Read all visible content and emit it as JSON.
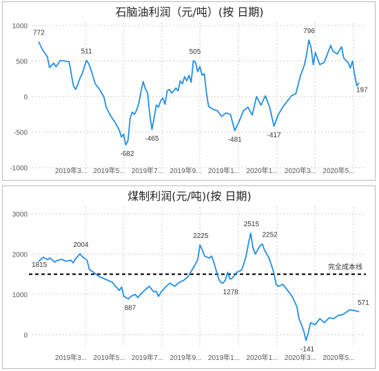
{
  "chart_data": [
    {
      "type": "line",
      "title": "石脑油利润（元/吨）(按 日期)",
      "ylim": [
        -1000,
        1000
      ],
      "yticks": [
        1000,
        500,
        0,
        -500,
        -1000
      ],
      "xticks": [
        "2019年3...",
        "2019年5...",
        "2019年7...",
        "2019年9...",
        "2019年1...",
        "2020年1...",
        "2020年3...",
        "2020年5..."
      ],
      "grid": true,
      "series": [
        {
          "points": [
            [
              0.0,
              772
            ],
            [
              0.02,
              650
            ],
            [
              0.04,
              560
            ],
            [
              0.05,
              410
            ],
            [
              0.07,
              470
            ],
            [
              0.08,
              420
            ],
            [
              0.1,
              510
            ],
            [
              0.12,
              500
            ],
            [
              0.14,
              490
            ],
            [
              0.16,
              150
            ],
            [
              0.17,
              100
            ],
            [
              0.18,
              170
            ],
            [
              0.19,
              260
            ],
            [
              0.2,
              320
            ],
            [
              0.21,
              420
            ],
            [
              0.22,
              511
            ],
            [
              0.23,
              460
            ],
            [
              0.24,
              380
            ],
            [
              0.26,
              180
            ],
            [
              0.28,
              100
            ],
            [
              0.3,
              -10
            ],
            [
              0.31,
              -150
            ],
            [
              0.33,
              -270
            ],
            [
              0.35,
              -360
            ],
            [
              0.37,
              -470
            ],
            [
              0.38,
              -570
            ],
            [
              0.39,
              -530
            ],
            [
              0.4,
              -682
            ],
            [
              0.41,
              -620
            ],
            [
              0.42,
              -300
            ],
            [
              0.43,
              -220
            ],
            [
              0.44,
              -250
            ],
            [
              0.45,
              -190
            ],
            [
              0.46,
              -90
            ],
            [
              0.47,
              80
            ],
            [
              0.48,
              210
            ],
            [
              0.49,
              110
            ],
            [
              0.5,
              50
            ],
            [
              0.51,
              -250
            ],
            [
              0.52,
              -465
            ],
            [
              0.53,
              -300
            ],
            [
              0.54,
              -120
            ],
            [
              0.55,
              -150
            ],
            [
              0.56,
              -60
            ],
            [
              0.57,
              -20
            ],
            [
              0.58,
              -110
            ],
            [
              0.59,
              80
            ],
            [
              0.6,
              100
            ],
            [
              0.61,
              50
            ],
            [
              0.62,
              80
            ],
            [
              0.63,
              120
            ],
            [
              0.64,
              80
            ],
            [
              0.65,
              220
            ],
            [
              0.66,
              180
            ],
            [
              0.67,
              280
            ],
            [
              0.68,
              220
            ],
            [
              0.69,
              300
            ],
            [
              0.7,
              200
            ],
            [
              0.71,
              505
            ],
            [
              0.72,
              480
            ],
            [
              0.73,
              350
            ],
            [
              0.74,
              420
            ],
            [
              0.75,
              300
            ],
            [
              0.76,
              320
            ],
            [
              0.77,
              50
            ],
            [
              0.78,
              -140
            ],
            [
              0.8,
              -180
            ],
            [
              0.82,
              -200
            ],
            [
              0.84,
              -280
            ],
            [
              0.86,
              -230
            ],
            [
              0.88,
              -250
            ],
            [
              0.9,
              -481
            ],
            [
              0.92,
              -350
            ],
            [
              0.94,
              -200
            ],
            [
              0.96,
              -150
            ],
            [
              0.98,
              -260
            ],
            [
              1.0,
              0
            ],
            [
              1.02,
              -120
            ],
            [
              1.04,
              10
            ],
            [
              1.06,
              -150
            ],
            [
              1.08,
              -417
            ],
            [
              1.1,
              -250
            ],
            [
              1.12,
              -150
            ],
            [
              1.14,
              -70
            ],
            [
              1.16,
              10
            ],
            [
              1.18,
              40
            ],
            [
              1.2,
              280
            ],
            [
              1.22,
              450
            ],
            [
              1.23,
              600
            ],
            [
              1.24,
              796
            ],
            [
              1.25,
              690
            ],
            [
              1.26,
              450
            ],
            [
              1.27,
              620
            ],
            [
              1.29,
              450
            ],
            [
              1.31,
              480
            ],
            [
              1.32,
              560
            ],
            [
              1.34,
              720
            ],
            [
              1.35,
              640
            ],
            [
              1.37,
              600
            ],
            [
              1.39,
              700
            ],
            [
              1.4,
              540
            ],
            [
              1.42,
              480
            ],
            [
              1.43,
              400
            ],
            [
              1.44,
              500
            ],
            [
              1.45,
              300
            ],
            [
              1.46,
              150
            ],
            [
              1.47,
              197
            ]
          ]
        }
      ],
      "annotations": [
        {
          "text": "772",
          "value": 772
        },
        {
          "text": "511",
          "value": 511
        },
        {
          "text": "-682",
          "value": -682
        },
        {
          "text": "-465",
          "value": -465
        },
        {
          "text": "505",
          "value": 505
        },
        {
          "text": "-481",
          "value": -481
        },
        {
          "text": "-417",
          "value": -417
        },
        {
          "text": "796",
          "value": 796
        },
        {
          "text": "197",
          "value": 197
        }
      ]
    },
    {
      "type": "line",
      "title": "煤制利润(元/吨)(按 日期)",
      "ylim": [
        -300,
        3100
      ],
      "yticks": [
        3000,
        2000,
        1000,
        0
      ],
      "xticks": [
        "2019年3...",
        "2019年5...",
        "2019年7...",
        "2019年9...",
        "2019年1...",
        "2020年1...",
        "2020年3...",
        "2020年5..."
      ],
      "grid": true,
      "reference_line": {
        "value": 1500,
        "label": "完全成本线"
      },
      "series": [
        {
          "points": [
            [
              0.0,
              1815
            ],
            [
              0.02,
              1920
            ],
            [
              0.04,
              1860
            ],
            [
              0.05,
              1900
            ],
            [
              0.07,
              1800
            ],
            [
              0.08,
              1840
            ],
            [
              0.1,
              1870
            ],
            [
              0.12,
              1820
            ],
            [
              0.14,
              1850
            ],
            [
              0.15,
              1780
            ],
            [
              0.16,
              1880
            ],
            [
              0.18,
              2004
            ],
            [
              0.19,
              1930
            ],
            [
              0.21,
              1850
            ],
            [
              0.22,
              1620
            ],
            [
              0.24,
              1540
            ],
            [
              0.26,
              1450
            ],
            [
              0.28,
              1400
            ],
            [
              0.3,
              1350
            ],
            [
              0.32,
              1300
            ],
            [
              0.33,
              1220
            ],
            [
              0.35,
              1100
            ],
            [
              0.36,
              1180
            ],
            [
              0.37,
              950
            ],
            [
              0.39,
              887
            ],
            [
              0.4,
              950
            ],
            [
              0.42,
              1000
            ],
            [
              0.43,
              920
            ],
            [
              0.45,
              1050
            ],
            [
              0.47,
              1150
            ],
            [
              0.48,
              1200
            ],
            [
              0.5,
              1060
            ],
            [
              0.51,
              1080
            ],
            [
              0.52,
              950
            ],
            [
              0.53,
              1050
            ],
            [
              0.55,
              1180
            ],
            [
              0.57,
              1280
            ],
            [
              0.59,
              1200
            ],
            [
              0.61,
              1300
            ],
            [
              0.63,
              1350
            ],
            [
              0.65,
              1450
            ],
            [
              0.67,
              1650
            ],
            [
              0.69,
              1850
            ],
            [
              0.7,
              2225
            ],
            [
              0.71,
              2100
            ],
            [
              0.72,
              1950
            ],
            [
              0.74,
              1900
            ],
            [
              0.75,
              1950
            ],
            [
              0.76,
              1800
            ],
            [
              0.77,
              1600
            ],
            [
              0.78,
              1400
            ],
            [
              0.79,
              1300
            ],
            [
              0.8,
              1278
            ],
            [
              0.81,
              1350
            ],
            [
              0.82,
              1550
            ],
            [
              0.83,
              1380
            ],
            [
              0.84,
              1400
            ],
            [
              0.86,
              1550
            ],
            [
              0.88,
              1600
            ],
            [
              0.89,
              1750
            ],
            [
              0.9,
              1950
            ],
            [
              0.91,
              2250
            ],
            [
              0.92,
              2515
            ],
            [
              0.93,
              2150
            ],
            [
              0.94,
              2000
            ],
            [
              0.95,
              2100
            ],
            [
              0.96,
              2200
            ],
            [
              0.97,
              2252
            ],
            [
              0.98,
              2100
            ],
            [
              1.0,
              1900
            ],
            [
              1.02,
              1550
            ],
            [
              1.03,
              1250
            ],
            [
              1.04,
              1200
            ],
            [
              1.06,
              1250
            ],
            [
              1.08,
              1100
            ],
            [
              1.1,
              950
            ],
            [
              1.12,
              700
            ],
            [
              1.13,
              400
            ],
            [
              1.14,
              250
            ],
            [
              1.15,
              100
            ],
            [
              1.16,
              -141
            ],
            [
              1.17,
              50
            ],
            [
              1.18,
              300
            ],
            [
              1.2,
              250
            ],
            [
              1.22,
              400
            ],
            [
              1.24,
              300
            ],
            [
              1.26,
              420
            ],
            [
              1.28,
              400
            ],
            [
              1.3,
              480
            ],
            [
              1.32,
              500
            ],
            [
              1.34,
              580
            ],
            [
              1.35,
              620
            ],
            [
              1.37,
              600
            ],
            [
              1.39,
              571
            ]
          ]
        }
      ],
      "annotations": [
        {
          "text": "1815",
          "value": 1815
        },
        {
          "text": "2004",
          "value": 2004
        },
        {
          "text": "887",
          "value": 887
        },
        {
          "text": "2225",
          "value": 2225
        },
        {
          "text": "1278",
          "value": 1278
        },
        {
          "text": "2515",
          "value": 2515
        },
        {
          "text": "2252",
          "value": 2252
        },
        {
          "text": "-141",
          "value": -141
        },
        {
          "text": "571",
          "value": 571
        }
      ]
    }
  ]
}
